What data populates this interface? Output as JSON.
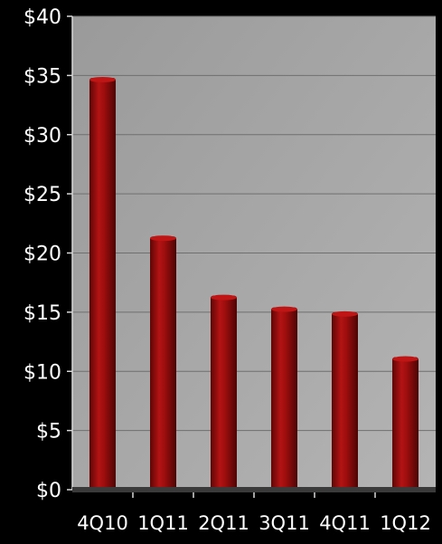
{
  "chart_data": {
    "type": "bar",
    "title": "",
    "xlabel": "",
    "ylabel": "",
    "categories": [
      "4Q10",
      "1Q11",
      "2Q11",
      "3Q11",
      "4Q11",
      "1Q12"
    ],
    "values": [
      34.8,
      21.4,
      16.4,
      15.4,
      15.0,
      11.2
    ],
    "ylim": [
      0,
      40
    ],
    "yticks": [
      0,
      5,
      10,
      15,
      20,
      25,
      30,
      35,
      40
    ],
    "ytick_labels": [
      "$0",
      "$5",
      "$10",
      "$15",
      "$20",
      "$25",
      "$30",
      "$35",
      "$40"
    ],
    "grid": true,
    "legend": "none",
    "colors": {
      "background": "#000000",
      "plot_area": "#a9a9a9",
      "bar": "#8b0a0a",
      "bar_highlight": "#c01515",
      "gridline": "#6f6f6f",
      "text": "#ffffff"
    }
  }
}
